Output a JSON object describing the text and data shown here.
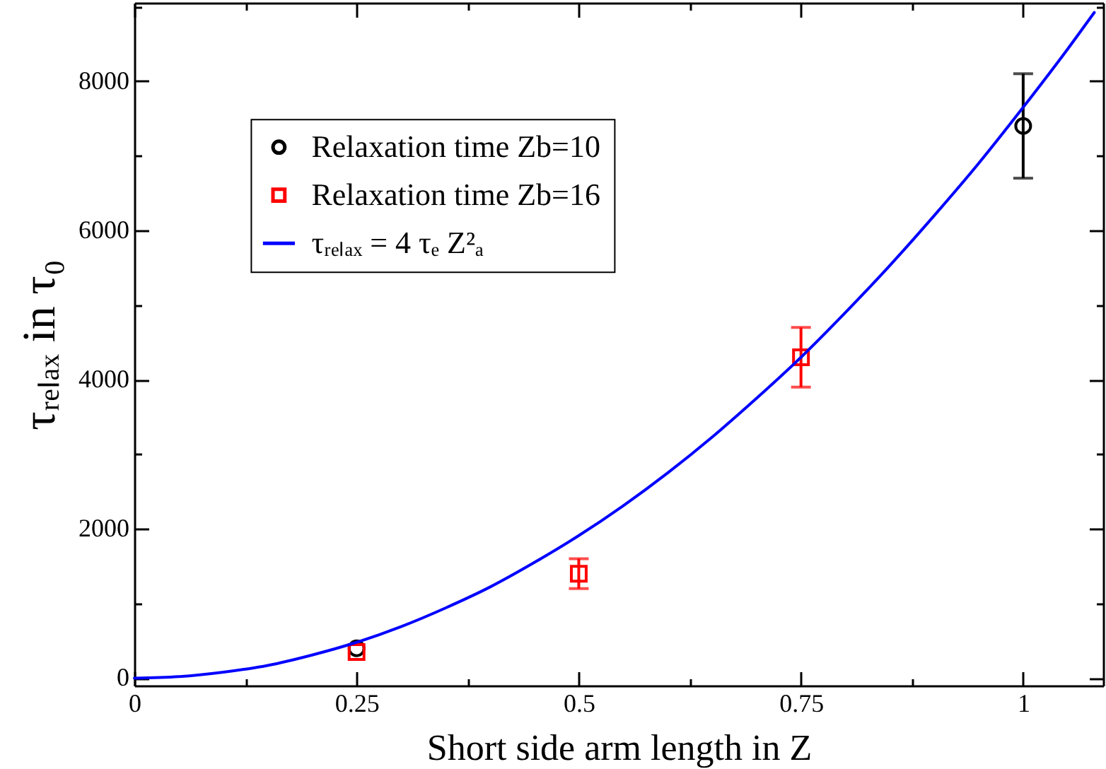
{
  "chart_data": {
    "type": "scatter",
    "xlabel": "Short side arm length in Z",
    "ylabel": "τᵣₑₗₐₓ in τ₀",
    "xlim": [
      0,
      1.09
    ],
    "ylim": [
      -100,
      9050
    ],
    "xticks": [
      0,
      {
        "value": 0.125,
        "label": null
      },
      0.25,
      {
        "value": 0.375,
        "label": null
      },
      0.5,
      {
        "value": 0.625,
        "label": null
      },
      0.75,
      {
        "value": 0.875,
        "label": null
      },
      1
    ],
    "yticks": [
      0,
      {
        "value": 1000,
        "label": null
      },
      2000,
      {
        "value": 3000,
        "label": null
      },
      4000,
      {
        "value": 5000,
        "label": null
      },
      6000,
      {
        "value": 7000,
        "label": null
      },
      8000,
      {
        "value": 9000,
        "label": null
      }
    ],
    "legend": "top left",
    "grid": false,
    "series": [
      {
        "name": "Relaxation time Zb=10",
        "marker": "circle",
        "color": "#000000",
        "x": [
          0.25,
          1
        ],
        "values": [
          400,
          7400
        ],
        "errors": [
          null,
          700
        ]
      },
      {
        "name": "Relaxation time Zb=16",
        "marker": "square",
        "color": "#ff0000",
        "x": [
          0.25,
          0.5,
          0.75
        ],
        "values": [
          350,
          1400,
          4300
        ],
        "errors": [
          null,
          200,
          400
        ]
      },
      {
        "name": "τᵣₑₗₐₓ = 4 τₑ Z²ₐ",
        "type": "line",
        "marker": "none",
        "line_style": "solid",
        "color": "#0000ff",
        "x": [
          0,
          0.05,
          0.1,
          0.15,
          0.2,
          0.25,
          0.3,
          0.35,
          0.4,
          0.45,
          0.5,
          0.55,
          0.6,
          0.65,
          0.7,
          0.75,
          0.8,
          0.85,
          0.9,
          0.95,
          1,
          1.05,
          1.08
        ],
        "values": [
          0,
          20,
          80,
          170,
          310,
          480,
          690,
          940,
          1220,
          1550,
          1910,
          2310,
          2750,
          3230,
          3750,
          4300,
          4900,
          5530,
          6200,
          6900,
          7650,
          8430,
          8920
        ]
      }
    ]
  }
}
